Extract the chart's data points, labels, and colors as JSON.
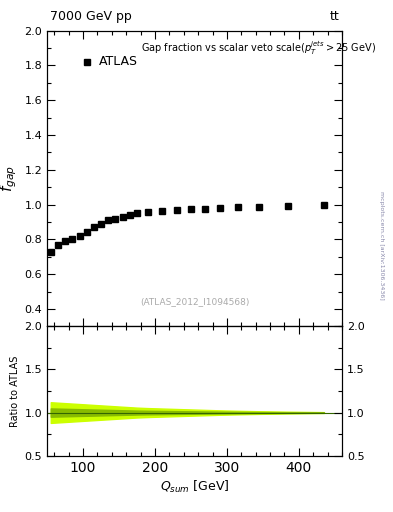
{
  "title_left": "7000 GeV pp",
  "title_right": "tt",
  "annotation": "(ATLAS_2012_I1094568)",
  "arxiv_label": "mcplots.cern.ch [arXiv:1306.3436]",
  "main_annotation": "Gap fraction vs scalar veto scale($p_T^{jets}>$25 GeV)",
  "atlas_label": "ATLAS",
  "xlabel": "$Q_{sum}$ [GeV]",
  "ylabel_main": "$f_{gap}$",
  "ylabel_ratio": "Ratio to ATLAS",
  "xlim": [
    50,
    460
  ],
  "ylim_main": [
    0.3,
    2.0
  ],
  "ylim_ratio": [
    0.5,
    2.0
  ],
  "data_x": [
    55,
    65,
    75,
    85,
    95,
    105,
    115,
    125,
    135,
    145,
    155,
    165,
    175,
    190,
    210,
    230,
    250,
    270,
    290,
    315,
    345,
    385,
    435
  ],
  "data_y": [
    0.73,
    0.77,
    0.79,
    0.8,
    0.82,
    0.84,
    0.87,
    0.89,
    0.91,
    0.92,
    0.93,
    0.94,
    0.95,
    0.96,
    0.965,
    0.97,
    0.975,
    0.975,
    0.98,
    0.985,
    0.985,
    0.99,
    1.0
  ],
  "ratio_y": 1.0,
  "ratio_band_color_yellow": "#ccff00",
  "ratio_band_color_green": "#88bb00",
  "ratio_line_color": "#336600",
  "main_yticks": [
    0.4,
    0.6,
    0.8,
    1.0,
    1.2,
    1.4,
    1.6,
    1.8,
    2.0
  ],
  "ratio_yticks": [
    0.5,
    1.0,
    1.5,
    2.0
  ],
  "xticks": [
    100,
    200,
    300,
    400
  ],
  "marker_color": "black",
  "marker_size": 4,
  "background": "#ffffff"
}
